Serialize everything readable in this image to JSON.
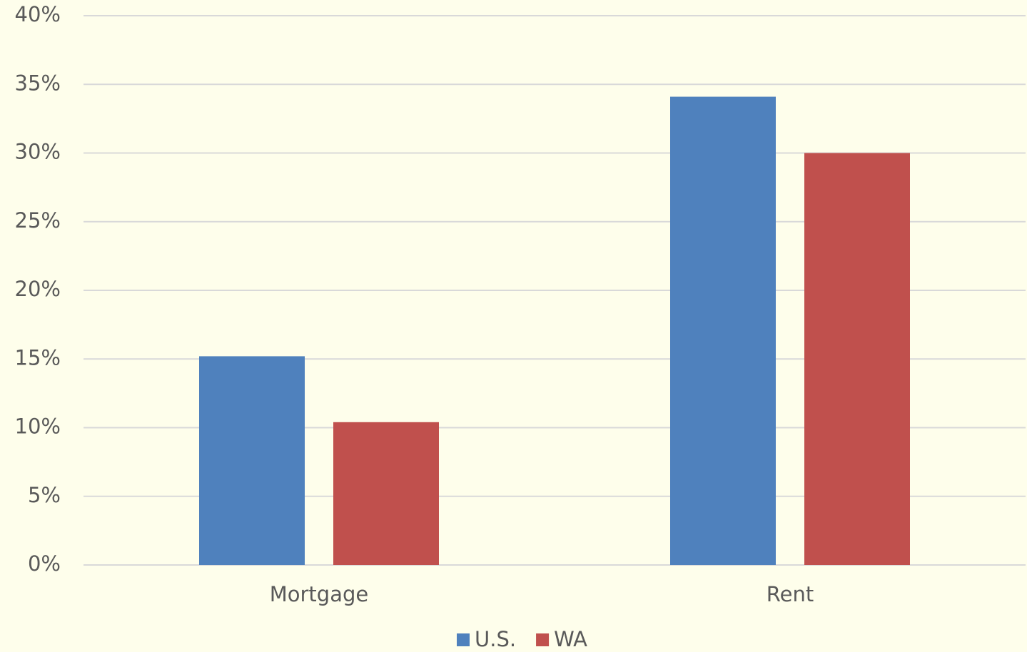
{
  "chart_data": {
    "type": "bar",
    "categories": [
      "Mortgage",
      "Rent"
    ],
    "series": [
      {
        "name": "U.S.",
        "color": "#4f81bd",
        "values": [
          15.2,
          34.1
        ]
      },
      {
        "name": "WA",
        "color": "#c0504d",
        "values": [
          10.4,
          30.0
        ]
      }
    ],
    "ylim": [
      0,
      40
    ],
    "yticks": [
      {
        "value": 0,
        "label": "0%"
      },
      {
        "value": 5,
        "label": "5%"
      },
      {
        "value": 10,
        "label": "10%"
      },
      {
        "value": 15,
        "label": "15%"
      },
      {
        "value": 20,
        "label": "20%"
      },
      {
        "value": 25,
        "label": "25%"
      },
      {
        "value": 30,
        "label": "30%"
      },
      {
        "value": 35,
        "label": "35%"
      },
      {
        "value": 40,
        "label": "40%"
      }
    ],
    "grid": true,
    "legend": "bottom"
  }
}
